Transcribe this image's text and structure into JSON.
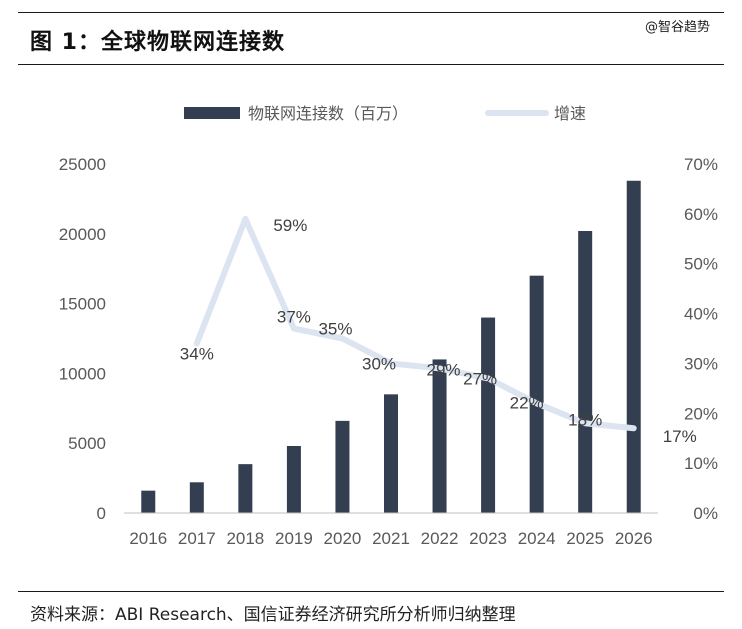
{
  "header": {
    "title": "图 1：全球物联网连接数",
    "watermark": "@智谷趋势"
  },
  "footer": {
    "source": "资料来源：ABI Research、国信证券经济研究所分析师归纳整理"
  },
  "colors": {
    "bar": "#333f50",
    "line": "#dbe4f0",
    "rule": "#1a1a1a"
  },
  "chart_data": {
    "type": "bar",
    "categories": [
      "2016",
      "2017",
      "2018",
      "2019",
      "2020",
      "2021",
      "2022",
      "2023",
      "2024",
      "2025",
      "2026"
    ],
    "series": [
      {
        "name": "物联网连接数（百万）",
        "type": "bar",
        "axis": "left",
        "values": [
          1600,
          2200,
          3500,
          4800,
          6600,
          8500,
          11000,
          14000,
          17000,
          20200,
          23800
        ]
      },
      {
        "name": "增速",
        "type": "line",
        "axis": "right",
        "values": [
          null,
          0.34,
          0.59,
          0.37,
          0.35,
          0.3,
          0.29,
          0.27,
          0.22,
          0.18,
          0.17
        ],
        "labels": [
          "",
          "34%",
          "59%",
          "37%",
          "35%",
          "30%",
          "29%",
          "27%",
          "22%",
          "18%",
          "17%"
        ]
      }
    ],
    "yleft": {
      "lim": [
        0,
        25000
      ],
      "ticks": [
        "0",
        "5000",
        "10000",
        "15000",
        "20000",
        "25000"
      ]
    },
    "yright": {
      "lim": [
        0,
        0.7
      ],
      "ticks": [
        "0%",
        "10%",
        "20%",
        "30%",
        "40%",
        "50%",
        "60%",
        "70%"
      ]
    },
    "legend": {
      "position": "top",
      "entries": [
        "物联网连接数（百万）",
        "增速"
      ]
    },
    "grid": false
  }
}
